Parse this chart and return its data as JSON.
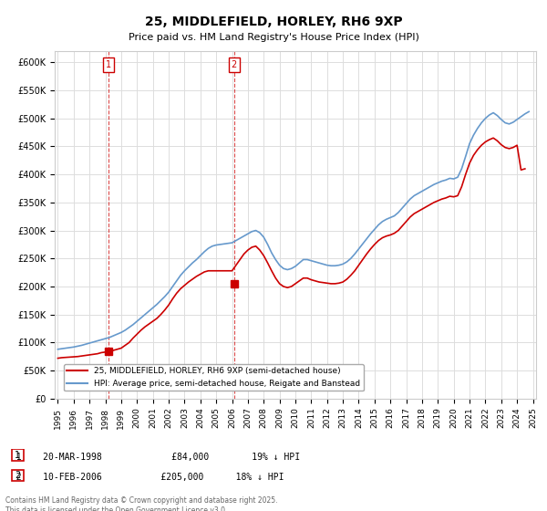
{
  "title": "25, MIDDLEFIELD, HORLEY, RH6 9XP",
  "subtitle": "Price paid vs. HM Land Registry's House Price Index (HPI)",
  "hpi_label": "HPI: Average price, semi-detached house, Reigate and Banstead",
  "price_label": "25, MIDDLEFIELD, HORLEY, RH6 9XP (semi-detached house)",
  "copyright_text": "Contains HM Land Registry data © Crown copyright and database right 2025.\nThis data is licensed under the Open Government Licence v3.0.",
  "annotation1": {
    "num": "1",
    "date": "20-MAR-1998",
    "price": "£84,000",
    "hpi": "19% ↓ HPI"
  },
  "annotation2": {
    "num": "2",
    "date": "10-FEB-2006",
    "price": "£205,000",
    "hpi": "18% ↓ HPI"
  },
  "ylim": [
    0,
    620000
  ],
  "yticks": [
    0,
    50000,
    100000,
    150000,
    200000,
    250000,
    300000,
    350000,
    400000,
    450000,
    500000,
    550000,
    600000
  ],
  "price_color": "#cc0000",
  "hpi_color": "#6699cc",
  "background_color": "#ffffff",
  "grid_color": "#dddddd",
  "marker1_x": 1998.22,
  "marker1_y": 84000,
  "marker2_x": 2006.12,
  "marker2_y": 205000,
  "hpi_data_x": [
    1995,
    1995.25,
    1995.5,
    1995.75,
    1996,
    1996.25,
    1996.5,
    1996.75,
    1997,
    1997.25,
    1997.5,
    1997.75,
    1998,
    1998.25,
    1998.5,
    1998.75,
    1999,
    1999.25,
    1999.5,
    1999.75,
    2000,
    2000.25,
    2000.5,
    2000.75,
    2001,
    2001.25,
    2001.5,
    2001.75,
    2002,
    2002.25,
    2002.5,
    2002.75,
    2003,
    2003.25,
    2003.5,
    2003.75,
    2004,
    2004.25,
    2004.5,
    2004.75,
    2005,
    2005.25,
    2005.5,
    2005.75,
    2006,
    2006.25,
    2006.5,
    2006.75,
    2007,
    2007.25,
    2007.5,
    2007.75,
    2008,
    2008.25,
    2008.5,
    2008.75,
    2009,
    2009.25,
    2009.5,
    2009.75,
    2010,
    2010.25,
    2010.5,
    2010.75,
    2011,
    2011.25,
    2011.5,
    2011.75,
    2012,
    2012.25,
    2012.5,
    2012.75,
    2013,
    2013.25,
    2013.5,
    2013.75,
    2014,
    2014.25,
    2014.5,
    2014.75,
    2015,
    2015.25,
    2015.5,
    2015.75,
    2016,
    2016.25,
    2016.5,
    2016.75,
    2017,
    2017.25,
    2017.5,
    2017.75,
    2018,
    2018.25,
    2018.5,
    2018.75,
    2019,
    2019.25,
    2019.5,
    2019.75,
    2020,
    2020.25,
    2020.5,
    2020.75,
    2021,
    2021.25,
    2021.5,
    2021.75,
    2022,
    2022.25,
    2022.5,
    2022.75,
    2023,
    2023.25,
    2023.5,
    2023.75,
    2024,
    2024.25,
    2024.5,
    2024.75
  ],
  "hpi_data_y": [
    88000,
    89000,
    90000,
    91000,
    92000,
    93500,
    95000,
    97000,
    99000,
    101000,
    103000,
    105000,
    107000,
    109000,
    112000,
    115000,
    118000,
    122000,
    127000,
    132000,
    138000,
    144000,
    150000,
    156000,
    162000,
    168000,
    175000,
    182000,
    190000,
    200000,
    210000,
    220000,
    228000,
    235000,
    242000,
    248000,
    255000,
    262000,
    268000,
    272000,
    274000,
    275000,
    276000,
    277000,
    278000,
    282000,
    286000,
    290000,
    294000,
    298000,
    300000,
    296000,
    288000,
    275000,
    260000,
    248000,
    238000,
    232000,
    230000,
    232000,
    236000,
    242000,
    248000,
    248000,
    246000,
    244000,
    242000,
    240000,
    238000,
    237000,
    237000,
    238000,
    240000,
    244000,
    250000,
    258000,
    267000,
    276000,
    285000,
    294000,
    302000,
    310000,
    316000,
    320000,
    323000,
    326000,
    332000,
    340000,
    348000,
    356000,
    362000,
    366000,
    370000,
    374000,
    378000,
    382000,
    385000,
    388000,
    390000,
    393000,
    392000,
    395000,
    410000,
    432000,
    455000,
    470000,
    482000,
    492000,
    500000,
    506000,
    510000,
    505000,
    498000,
    492000,
    490000,
    493000,
    498000,
    503000,
    508000,
    512000
  ],
  "price_data_x": [
    1995.0,
    1995.25,
    1995.5,
    1995.75,
    1996.0,
    1996.25,
    1996.5,
    1996.75,
    1997.0,
    1997.25,
    1997.5,
    1997.75,
    1998.0,
    1998.25,
    1998.5,
    1998.75,
    1999.0,
    1999.25,
    1999.5,
    1999.75,
    2000.0,
    2000.25,
    2000.5,
    2000.75,
    2001.0,
    2001.25,
    2001.5,
    2001.75,
    2002.0,
    2002.25,
    2002.5,
    2002.75,
    2003.0,
    2003.25,
    2003.5,
    2003.75,
    2004.0,
    2004.25,
    2004.5,
    2004.75,
    2005.0,
    2005.25,
    2005.5,
    2005.75,
    2006.0,
    2006.25,
    2006.5,
    2006.75,
    2007.0,
    2007.25,
    2007.5,
    2007.75,
    2008.0,
    2008.25,
    2008.5,
    2008.75,
    2009.0,
    2009.25,
    2009.5,
    2009.75,
    2010.0,
    2010.25,
    2010.5,
    2010.75,
    2011.0,
    2011.25,
    2011.5,
    2011.75,
    2012.0,
    2012.25,
    2012.5,
    2012.75,
    2013.0,
    2013.25,
    2013.5,
    2013.75,
    2014.0,
    2014.25,
    2014.5,
    2014.75,
    2015.0,
    2015.25,
    2015.5,
    2015.75,
    2016.0,
    2016.25,
    2016.5,
    2016.75,
    2017.0,
    2017.25,
    2017.5,
    2017.75,
    2018.0,
    2018.25,
    2018.5,
    2018.75,
    2019.0,
    2019.25,
    2019.5,
    2019.75,
    2020.0,
    2020.25,
    2020.5,
    2020.75,
    2021.0,
    2021.25,
    2021.5,
    2021.75,
    2022.0,
    2022.25,
    2022.5,
    2022.75,
    2023.0,
    2023.25,
    2023.5,
    2023.75,
    2024.0,
    2024.25,
    2024.5
  ],
  "price_data_y": [
    72000,
    73000,
    73500,
    74000,
    74500,
    75000,
    76000,
    77000,
    78000,
    79000,
    80000,
    82000,
    83000,
    84000,
    86000,
    88000,
    90000,
    95000,
    100000,
    108000,
    115000,
    122000,
    128000,
    133000,
    138000,
    143000,
    150000,
    158000,
    167000,
    178000,
    188000,
    196000,
    202000,
    208000,
    213000,
    218000,
    222000,
    226000,
    228000,
    228000,
    228000,
    228000,
    228000,
    228000,
    228000,
    238000,
    248000,
    258000,
    265000,
    270000,
    272000,
    265000,
    255000,
    242000,
    228000,
    215000,
    205000,
    200000,
    198000,
    200000,
    205000,
    210000,
    215000,
    215000,
    212000,
    210000,
    208000,
    207000,
    206000,
    205000,
    205000,
    206000,
    208000,
    213000,
    220000,
    228000,
    238000,
    248000,
    258000,
    267000,
    275000,
    282000,
    287000,
    290000,
    292000,
    295000,
    300000,
    308000,
    316000,
    324000,
    330000,
    334000,
    338000,
    342000,
    346000,
    350000,
    353000,
    356000,
    358000,
    361000,
    360000,
    362000,
    378000,
    400000,
    420000,
    434000,
    444000,
    452000,
    458000,
    462000,
    465000,
    460000,
    453000,
    448000,
    446000,
    448000,
    452000,
    408000,
    410000
  ],
  "xticks": [
    1995,
    1996,
    1997,
    1998,
    1999,
    2000,
    2001,
    2002,
    2003,
    2004,
    2005,
    2006,
    2007,
    2008,
    2009,
    2010,
    2011,
    2012,
    2013,
    2014,
    2015,
    2016,
    2017,
    2018,
    2019,
    2020,
    2021,
    2022,
    2023,
    2024,
    2025
  ]
}
